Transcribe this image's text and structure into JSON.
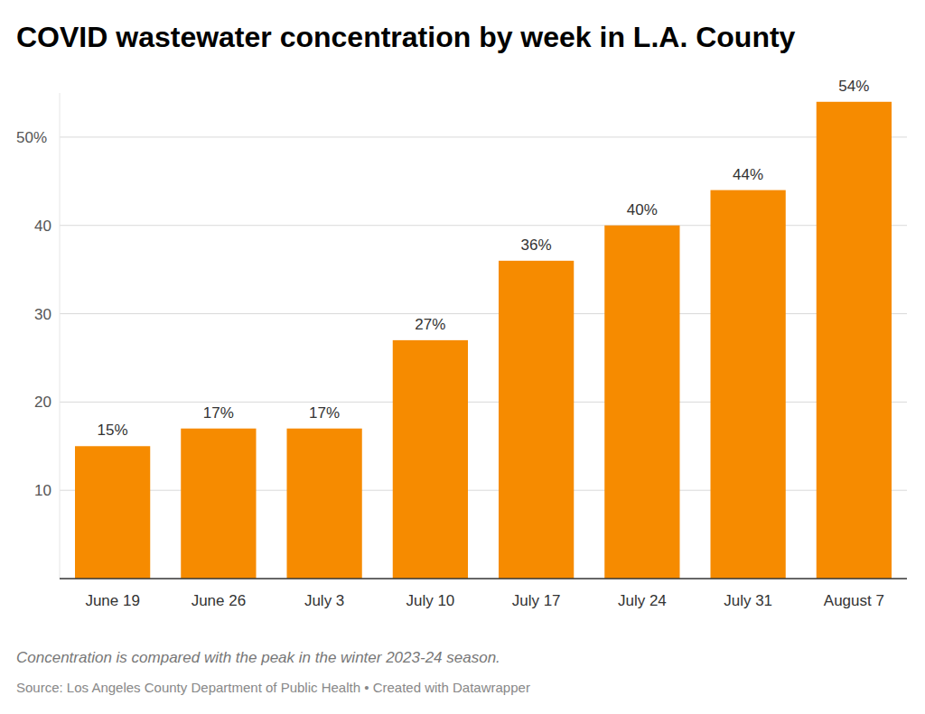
{
  "chart_data": {
    "type": "bar",
    "title": "COVID wastewater concentration by week in L.A. County",
    "categories": [
      "June 19",
      "June 26",
      "July 3",
      "July 10",
      "July 17",
      "July 24",
      "July 31",
      "August 7"
    ],
    "values": [
      15,
      17,
      17,
      27,
      36,
      40,
      44,
      54
    ],
    "value_labels": [
      "15%",
      "17%",
      "17%",
      "27%",
      "36%",
      "40%",
      "44%",
      "54%"
    ],
    "color": "#f68b00",
    "ylim": [
      0,
      55
    ],
    "yticks": [
      10,
      20,
      30,
      40,
      {
        "value": 50,
        "label": "50%"
      }
    ],
    "grid": true,
    "data_labels": true,
    "note": "Concentration is compared with the peak in the winter 2023-24 season.",
    "source": "Source: Los Angeles County Department of Public Health • Created with Datawrapper"
  }
}
